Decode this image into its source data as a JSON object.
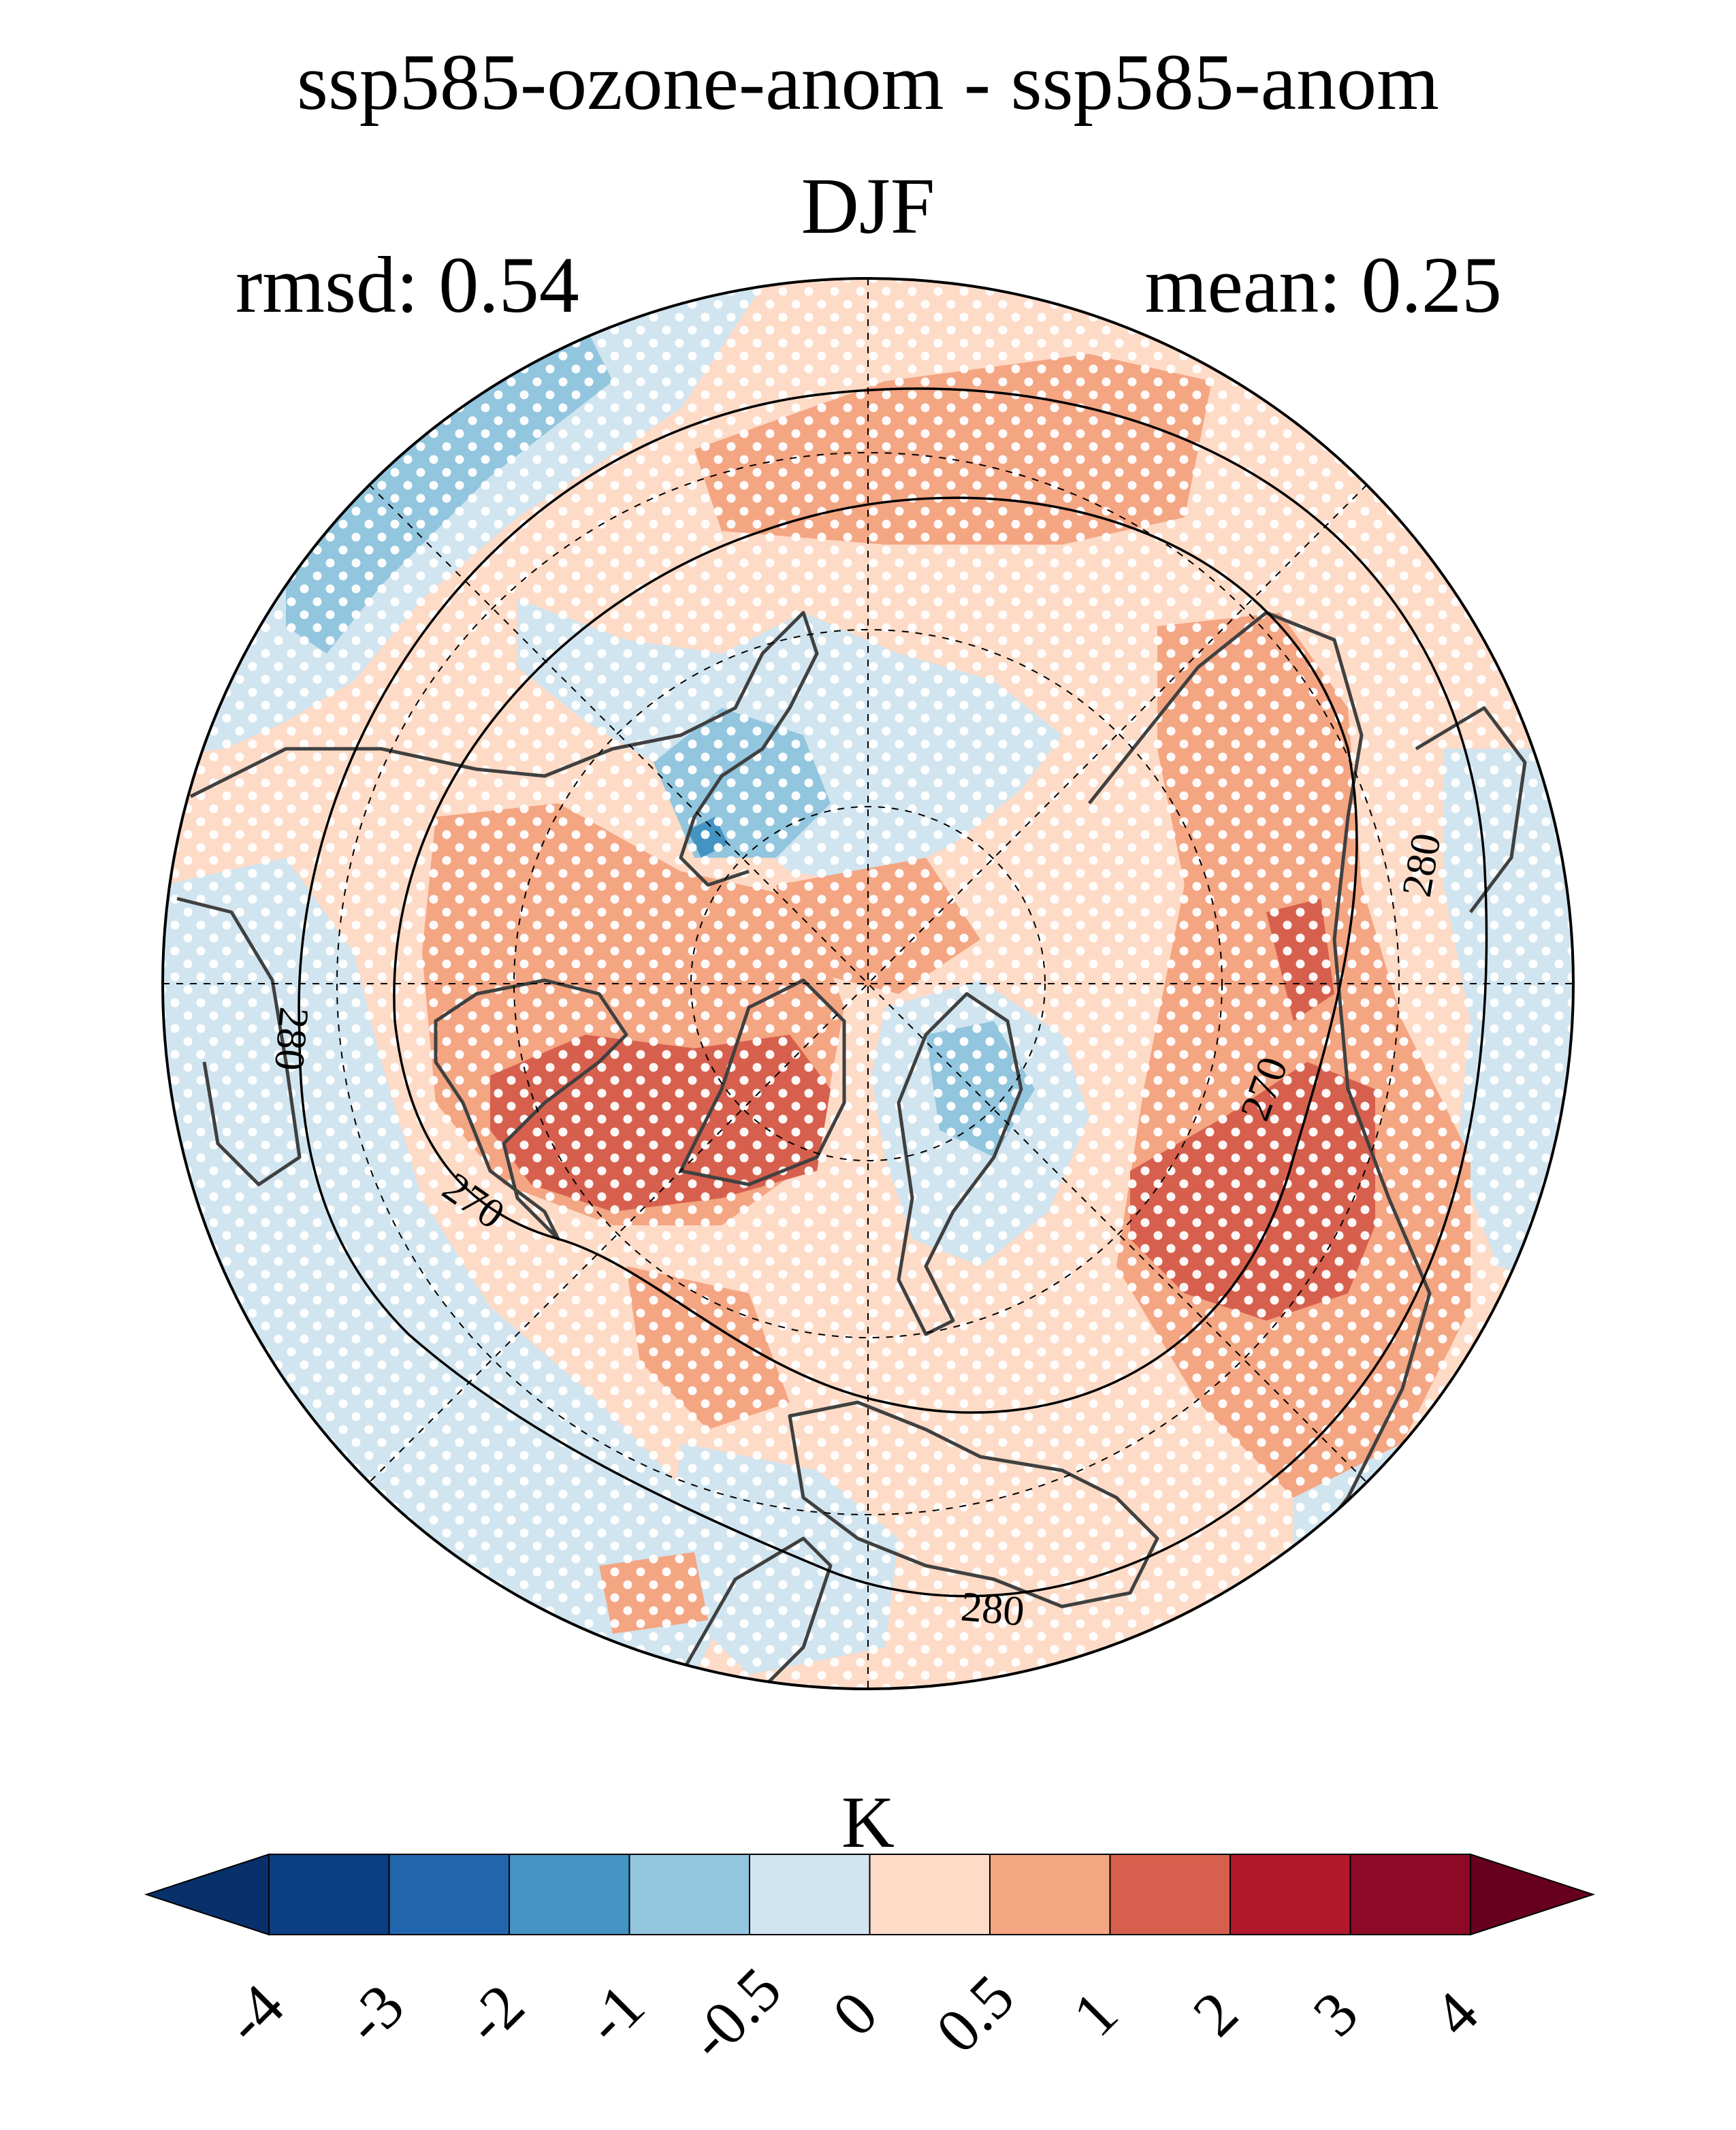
{
  "title": "ssp585-ozone-anom - ssp585-anom",
  "subtitle": "DJF",
  "stats": {
    "rmsd": "rmsd: 0.54",
    "mean": "mean: 0.25"
  },
  "contour_labels": [
    "280",
    "280",
    "270",
    "270",
    "280"
  ],
  "colorbar": {
    "unit": "K",
    "ticks": [
      "-4",
      "-3",
      "-2",
      "-1",
      "-0.5",
      "0",
      "0.5",
      "1",
      "2",
      "3",
      "4"
    ],
    "colors": [
      "#08306b",
      "#0b3e82",
      "#2166ac",
      "#4393c3",
      "#92c5de",
      "#d1e5f0",
      "#fddbc7",
      "#f4a582",
      "#d6604d",
      "#b2182b",
      "#8c0a25",
      "#67001f"
    ]
  },
  "palette": {
    "light_blue": "#d1e5f0",
    "mid_blue": "#92c5de",
    "blue": "#4393c3",
    "light_red": "#fddbc7",
    "mid_red": "#f4a582",
    "red": "#d6604d",
    "coast": "#404040",
    "stipple": "#ffffff"
  }
}
